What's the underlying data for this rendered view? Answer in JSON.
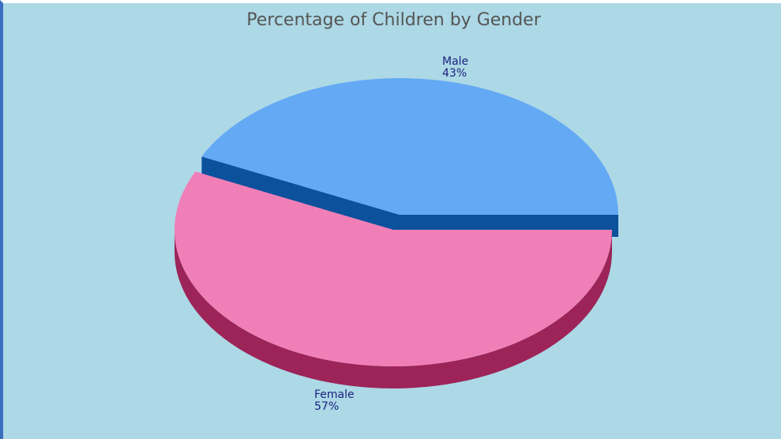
{
  "chart_data": {
    "type": "pie",
    "title": "Percentage of Children by Gender",
    "slices": [
      {
        "label": "Male",
        "value": 43,
        "value_label": "43%",
        "color": "#63a9f4",
        "side_color": "#0b519c"
      },
      {
        "label": "Female",
        "value": 57,
        "value_label": "57%",
        "color": "#f07fb8",
        "side_color": "#9c2458"
      }
    ],
    "style": "3d",
    "background_color": "#add8e6"
  }
}
